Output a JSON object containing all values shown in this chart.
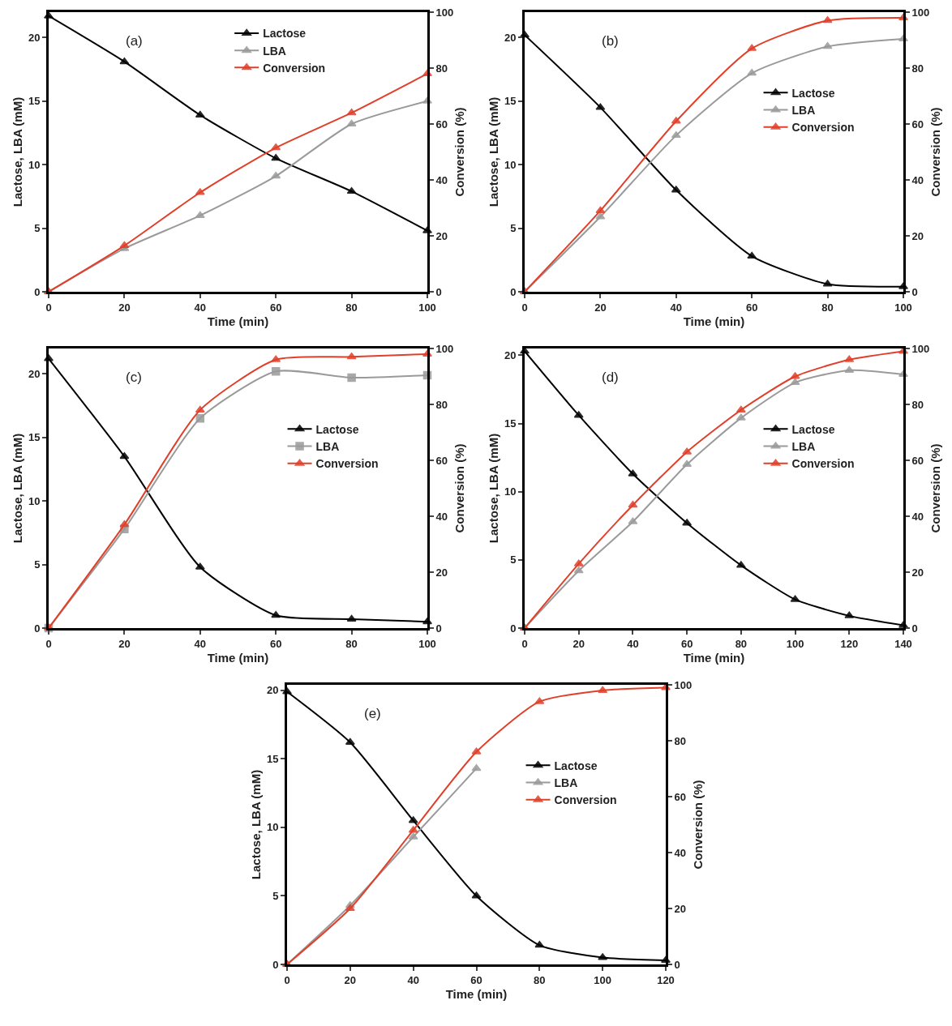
{
  "chart_data": [
    {
      "type": "line",
      "annotations": [
        "(a)"
      ],
      "xlabel": "Time (min)",
      "ylabel": "Lactose, LBA (mM)",
      "y2label": "Conversion (%)",
      "x": [
        0,
        20,
        40,
        60,
        80,
        100
      ],
      "xlim": [
        0,
        100
      ],
      "xticks": [
        0,
        20,
        40,
        60,
        80,
        100
      ],
      "ylim": [
        0,
        22
      ],
      "yticks": [
        0,
        5,
        10,
        15,
        20
      ],
      "y2lim": [
        0,
        100
      ],
      "y2ticks": [
        0,
        20,
        40,
        60,
        80,
        100
      ],
      "grid": false,
      "legend": "top",
      "marker": "triangle",
      "series": [
        {
          "name": "Lactose",
          "color": "#000000",
          "values": [
            21.7,
            18.1,
            13.9,
            10.5,
            7.9,
            4.8
          ]
        },
        {
          "name": "LBA",
          "color": "#9a9a9a",
          "values": [
            0,
            3.4,
            6.0,
            9.1,
            13.2,
            15.0
          ]
        },
        {
          "name": "Conversion",
          "color": "#e0402a",
          "axis": "y2",
          "values": [
            0,
            16.5,
            35.5,
            51.5,
            64,
            78
          ]
        }
      ]
    },
    {
      "type": "line",
      "annotations": [
        "(b)"
      ],
      "xlabel": "Time (min)",
      "ylabel": "Lactose, LBA (mM)",
      "y2label": "Conversion (%)",
      "x": [
        0,
        20,
        40,
        60,
        80,
        100
      ],
      "xlim": [
        0,
        100
      ],
      "xticks": [
        0,
        20,
        40,
        60,
        80,
        100
      ],
      "ylim": [
        0,
        22
      ],
      "yticks": [
        0,
        5,
        10,
        15,
        20
      ],
      "y2lim": [
        0,
        100
      ],
      "y2ticks": [
        0,
        20,
        40,
        60,
        80,
        100
      ],
      "grid": false,
      "legend": "right",
      "marker": "triangle",
      "series": [
        {
          "name": "Lactose",
          "color": "#000000",
          "values": [
            20.2,
            14.5,
            8.0,
            2.8,
            0.6,
            0.4
          ]
        },
        {
          "name": "LBA",
          "color": "#9a9a9a",
          "values": [
            0,
            5.9,
            12.3,
            17.2,
            19.3,
            19.9
          ]
        },
        {
          "name": "Conversion",
          "color": "#e0402a",
          "axis": "y2",
          "values": [
            0,
            29,
            61,
            87,
            97,
            98
          ]
        }
      ]
    },
    {
      "type": "line",
      "annotations": [
        "(c)"
      ],
      "xlabel": "Time (min)",
      "ylabel": "Lactose, LBA (mM)",
      "y2label": "Conversion (%)",
      "x": [
        0,
        20,
        40,
        60,
        80,
        100
      ],
      "xlim": [
        0,
        100
      ],
      "xticks": [
        0,
        20,
        40,
        60,
        80,
        100
      ],
      "ylim": [
        0,
        22
      ],
      "yticks": [
        0,
        5,
        10,
        15,
        20
      ],
      "y2lim": [
        0,
        100
      ],
      "y2ticks": [
        0,
        20,
        40,
        60,
        80,
        100
      ],
      "grid": false,
      "legend": "right",
      "marker": "triangle",
      "series": [
        {
          "name": "Lactose",
          "color": "#000000",
          "values": [
            21.2,
            13.5,
            4.8,
            1.0,
            0.7,
            0.5
          ]
        },
        {
          "name": "LBA",
          "color": "#9a9a9a",
          "marker": "square",
          "values": [
            0,
            7.8,
            16.5,
            20.2,
            19.7,
            19.9
          ]
        },
        {
          "name": "Conversion",
          "color": "#e0402a",
          "axis": "y2",
          "values": [
            0,
            37,
            78,
            96,
            97,
            98
          ]
        }
      ]
    },
    {
      "type": "line",
      "annotations": [
        "(d)"
      ],
      "xlabel": "Time (min)",
      "ylabel": "Lactose, LBA (mM)",
      "y2label": "Conversion (%)",
      "x": [
        0,
        20,
        40,
        60,
        80,
        100,
        120,
        140
      ],
      "xlim": [
        0,
        140
      ],
      "xticks": [
        0,
        20,
        40,
        60,
        80,
        100,
        120,
        140
      ],
      "ylim": [
        0,
        20.5
      ],
      "yticks": [
        0,
        5,
        10,
        15,
        20
      ],
      "y2lim": [
        0,
        100
      ],
      "y2ticks": [
        0,
        20,
        40,
        60,
        80,
        100
      ],
      "grid": false,
      "legend": "right",
      "marker": "triangle",
      "series": [
        {
          "name": "Lactose",
          "color": "#000000",
          "values": [
            20.3,
            15.6,
            11.3,
            7.7,
            4.6,
            2.1,
            0.9,
            0.2
          ]
        },
        {
          "name": "LBA",
          "color": "#9a9a9a",
          "values": [
            0,
            4.2,
            7.8,
            12.0,
            15.4,
            18.0,
            18.9,
            18.6
          ]
        },
        {
          "name": "Conversion",
          "color": "#e0402a",
          "axis": "y2",
          "values": [
            0,
            23,
            44,
            63,
            78,
            90,
            96,
            99
          ]
        }
      ]
    },
    {
      "type": "line",
      "annotations": [
        "(e)"
      ],
      "xlabel": "Time (min)",
      "ylabel": "Lactose, LBA (mM)",
      "y2label": "Conversion (%)",
      "x": [
        0,
        20,
        40,
        60,
        80,
        100,
        120
      ],
      "xlim": [
        0,
        120
      ],
      "xticks": [
        0,
        20,
        40,
        60,
        80,
        100,
        120
      ],
      "ylim": [
        0,
        20.4
      ],
      "yticks": [
        0,
        5,
        10,
        15,
        20
      ],
      "y2lim": [
        0,
        100
      ],
      "y2ticks": [
        0,
        20,
        40,
        60,
        80,
        100
      ],
      "grid": false,
      "legend": "right",
      "marker": "triangle",
      "series": [
        {
          "name": "Lactose",
          "color": "#000000",
          "values": [
            19.9,
            16.2,
            10.5,
            5.0,
            1.4,
            0.5,
            0.3
          ]
        },
        {
          "name": "LBA",
          "color": "#9a9a9a",
          "values": [
            0,
            4.3,
            9.3,
            14.3,
            null,
            null,
            null
          ]
        },
        {
          "name": "Conversion",
          "color": "#e0402a",
          "axis": "y2",
          "values": [
            0,
            20,
            48,
            76,
            94,
            98,
            99
          ]
        }
      ]
    }
  ]
}
